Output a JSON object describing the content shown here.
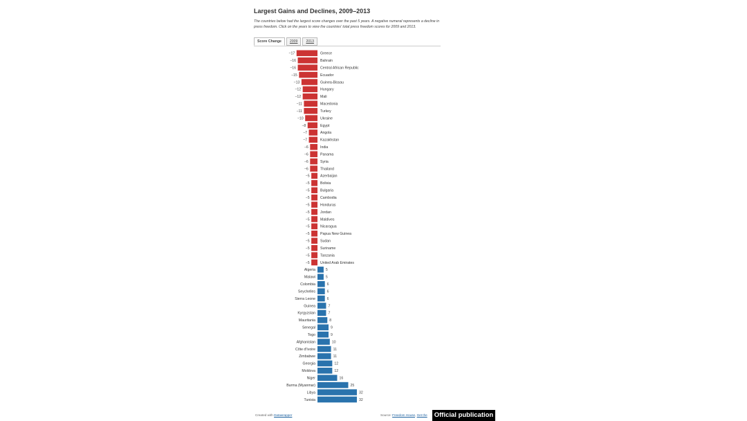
{
  "header": {
    "title": "Largest Gains and Declines, 2009–2013",
    "description": "The countries below had the largest score changes over the past 5 years. A negative numeral represents a decline in press freedom. Click on the years to view the countries' total press freedom scores for 2009 and 2013."
  },
  "tabs": [
    {
      "label": "Score Change",
      "active": true
    },
    {
      "label": "2009",
      "active": false
    },
    {
      "label": "2013",
      "active": false
    }
  ],
  "footer": {
    "created_prefix": "Created with ",
    "created_link": "Datawrapper",
    "source_prefix": "Source: ",
    "source_link": "Freedom House",
    "get_data": "Get the",
    "badge": "Official publication"
  },
  "colors": {
    "decline": "#cc3333",
    "gain": "#2a73ad"
  },
  "chart_data": {
    "type": "bar",
    "orientation": "horizontal",
    "categories": [
      "Greece",
      "Bahrain",
      "Central African Republic",
      "Ecuador",
      "Guinea-Bissau",
      "Hungary",
      "Mali",
      "Macedonia",
      "Turkey",
      "Ukraine",
      "Egypt",
      "Angola",
      "Kazakhstan",
      "India",
      "Panama",
      "Syria",
      "Thailand",
      "Azerbaijan",
      "Bolivia",
      "Bulgaria",
      "Cambodia",
      "Honduras",
      "Jordan",
      "Maldives",
      "Nicaragua",
      "Papua New Guinea",
      "Sudan",
      "Suriname",
      "Tanzania",
      "United Arab Emirates",
      "Algeria",
      "Malawi",
      "Colombia",
      "Seychelles",
      "Sierra Leone",
      "Guinea",
      "Kyrgyzstan",
      "Mauritania",
      "Senegal",
      "Togo",
      "Afghanistan",
      "Côte d'Ivoire",
      "Zimbabwe",
      "Georgia",
      "Moldova",
      "Niger",
      "Burma (Myanmar)",
      "Libya",
      "Tunisia"
    ],
    "values": [
      -17,
      -16,
      -16,
      -15,
      -13,
      -12,
      -12,
      -11,
      -11,
      -10,
      -8,
      -7,
      -7,
      -6,
      -6,
      -6,
      -6,
      -5,
      -5,
      -5,
      -5,
      -5,
      -5,
      -5,
      -5,
      -5,
      -5,
      -5,
      -5,
      -5,
      5,
      5,
      6,
      6,
      6,
      7,
      7,
      8,
      9,
      9,
      10,
      11,
      11,
      12,
      12,
      16,
      25,
      32,
      32
    ],
    "xlim": [
      -17,
      32
    ]
  }
}
